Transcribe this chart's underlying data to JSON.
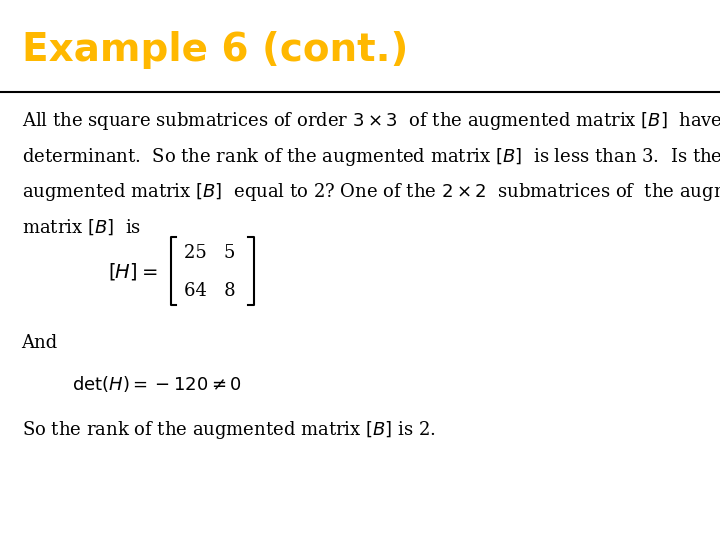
{
  "title": "Example 6 (cont.)",
  "title_color": "#FFB800",
  "title_bg_color": "#000000",
  "body_bg_color": "#FFFFFF",
  "title_fontsize": 28,
  "body_fontsize": 13,
  "and_text": "And",
  "conclusion": "So the rank of the augmented matrix $[B]$ is 2."
}
